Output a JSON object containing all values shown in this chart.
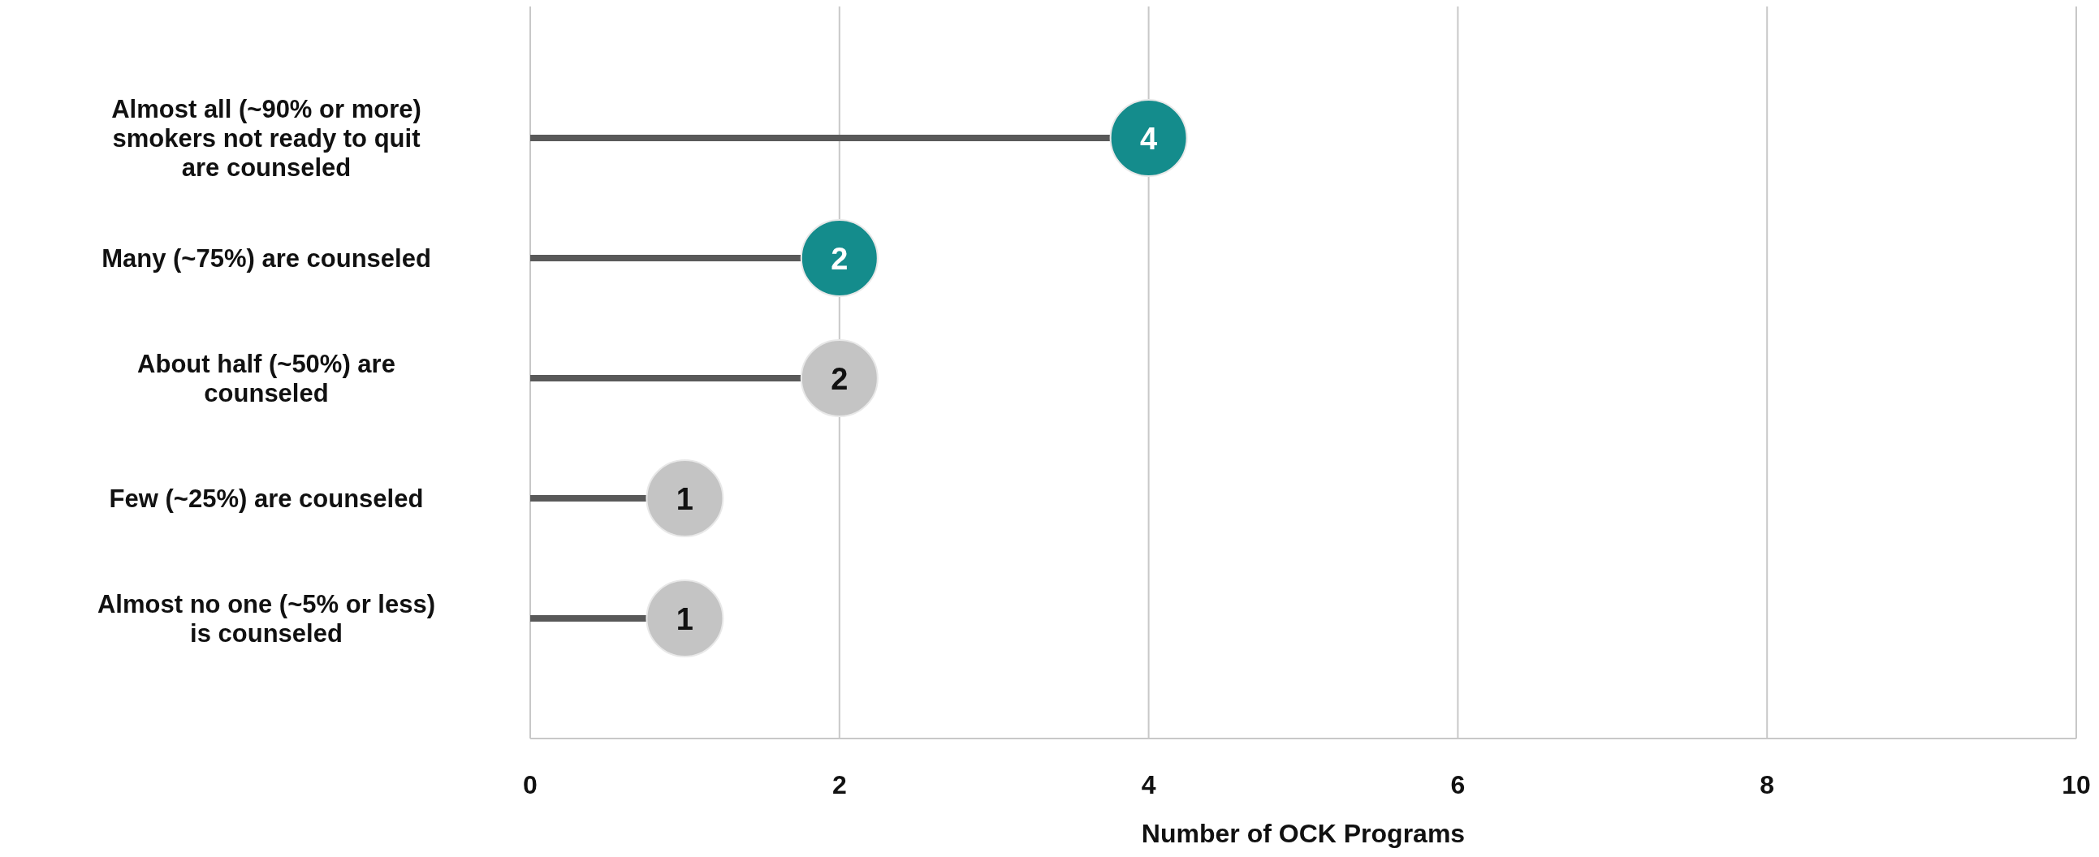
{
  "chart_data": {
    "type": "lollipop",
    "orientation": "horizontal",
    "xlabel": "Number of OCK Programs",
    "categories": [
      "Almost all (~90% or more) smokers not ready to quit are counseled",
      "Many (~75%) are counseled",
      "About half (~50%) are counseled",
      "Few (~25%) are counseled",
      "Almost no one (~5% or less) is counseled"
    ],
    "values": [
      4,
      2,
      2,
      1,
      1
    ],
    "colors": [
      "#148c8c",
      "#148c8c",
      "#c4c4c4",
      "#c4c4c4",
      "#c4c4c4"
    ],
    "color": "#595959",
    "xlim": [
      0,
      10
    ],
    "xticks": [
      0,
      2,
      4,
      6,
      8,
      10
    ],
    "grid": "x",
    "data_labels": true
  }
}
